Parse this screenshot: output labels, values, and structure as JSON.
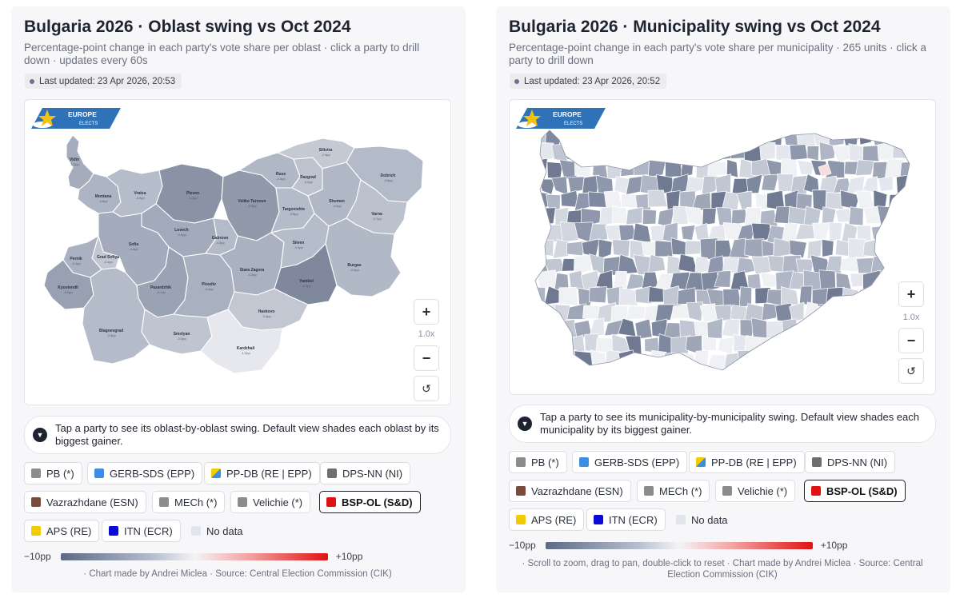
{
  "left": {
    "title": "Bulgaria 2026 · Oblast swing vs Oct 2024",
    "subtitle": "Percentage-point change in each party's vote share per oblast · click a party to drill down · updates every 60s",
    "updated": "Last updated: 23 Apr 2026, 20:53",
    "logo": {
      "line1": "EUROPE",
      "line2": "ELECTS"
    },
    "zoom": {
      "plus": "+",
      "level": "1.0x",
      "minus": "−",
      "reset": "↺"
    },
    "hint": "Tap a party to see its oblast-by-oblast swing. Default view shades each oblast by its biggest gainer.",
    "oblasts": [
      {
        "name": "Vidin",
        "value": "-5.2pp"
      },
      {
        "name": "Montana",
        "value": "-4.8pp"
      },
      {
        "name": "Vratsa",
        "value": "-3.9pp"
      },
      {
        "name": "Pleven",
        "value": "-6.1pp"
      },
      {
        "name": "Veliko Tarnovo",
        "value": "-5.5pp"
      },
      {
        "name": "Ruse",
        "value": "-4.4pp"
      },
      {
        "name": "Razgrad",
        "value": "-3.2pp"
      },
      {
        "name": "Silistra",
        "value": "-2.9pp"
      },
      {
        "name": "Dobrich",
        "value": "-3.6pp"
      },
      {
        "name": "Targovishte",
        "value": "-3.8pp"
      },
      {
        "name": "Shumen",
        "value": "-4.0pp"
      },
      {
        "name": "Varna",
        "value": "-3.7pp"
      },
      {
        "name": "Lovech",
        "value": "-4.9pp"
      },
      {
        "name": "Gabrovo",
        "value": "-4.3pp"
      },
      {
        "name": "Sofia",
        "value": "-4.6pp"
      },
      {
        "name": "Grad Sofiya",
        "value": "-3.1pp"
      },
      {
        "name": "Pernik",
        "value": "-4.1pp"
      },
      {
        "name": "Kyustendil",
        "value": "-5.0pp"
      },
      {
        "name": "Pazardzhik",
        "value": "-4.7pp"
      },
      {
        "name": "Plovdiv",
        "value": "-4.4pp"
      },
      {
        "name": "Stara Zagora",
        "value": "-4.2pp"
      },
      {
        "name": "Sliven",
        "value": "-3.9pp"
      },
      {
        "name": "Burgas",
        "value": "-4.0pp"
      },
      {
        "name": "Yambol",
        "value": "-6.3pp"
      },
      {
        "name": "Blagoevgrad",
        "value": "-3.5pp"
      },
      {
        "name": "Smolyan",
        "value": "-3.0pp"
      },
      {
        "name": "Haskovo",
        "value": "-3.3pp"
      },
      {
        "name": "Kardzhali",
        "value": "-1.2pp"
      }
    ],
    "credit": "· Chart made by Andrei Miclea · Source: Central Election Commission (CIK)"
  },
  "right": {
    "title": "Bulgaria 2026 · Municipality swing vs Oct 2024",
    "subtitle": "Percentage-point change in each party's vote share per municipality · 265 units · click a party to drill down",
    "updated": "Last updated: 23 Apr 2026, 20:52",
    "logo": {
      "line1": "EUROPE",
      "line2": "ELECTS"
    },
    "zoom": {
      "plus": "+",
      "level": "1.0x",
      "minus": "−",
      "reset": "↺"
    },
    "hint": "Tap a party to see its municipality-by-municipality swing. Default view shades each municipality by its biggest gainer.",
    "credit": "· Scroll to zoom, drag to pan, double-click to reset · Chart made by Andrei Miclea · Source: Central Election Commission (CIK)"
  },
  "parties": [
    {
      "label": "PB (*)",
      "color": "#8c8c8c"
    },
    {
      "label": "GERB-SDS (EPP)",
      "color": "#3a8ee6"
    },
    {
      "label": "PP-DB (RE | EPP)",
      "color": "split"
    },
    {
      "label": "DPS-NN (NI)",
      "color": "#6e6e6e"
    },
    {
      "label": "Vazrazhdane (ESN)",
      "color": "#7a4a3a"
    },
    {
      "label": "MECh (*)",
      "color": "#8c8c8c"
    },
    {
      "label": "Velichie (*)",
      "color": "#8c8c8c"
    },
    {
      "label": "BSP-OL (S&D)",
      "color": "#e01212",
      "active": true
    },
    {
      "label": "APS (RE)",
      "color": "#f2cc00"
    },
    {
      "label": "ITN (ECR)",
      "color": "#0a0ad8"
    }
  ],
  "nodata": "No data",
  "scale": {
    "min": "−10pp",
    "max": "+10pp",
    "colors": [
      "#5d6a86",
      "#f4f4f6",
      "#e01212"
    ]
  }
}
